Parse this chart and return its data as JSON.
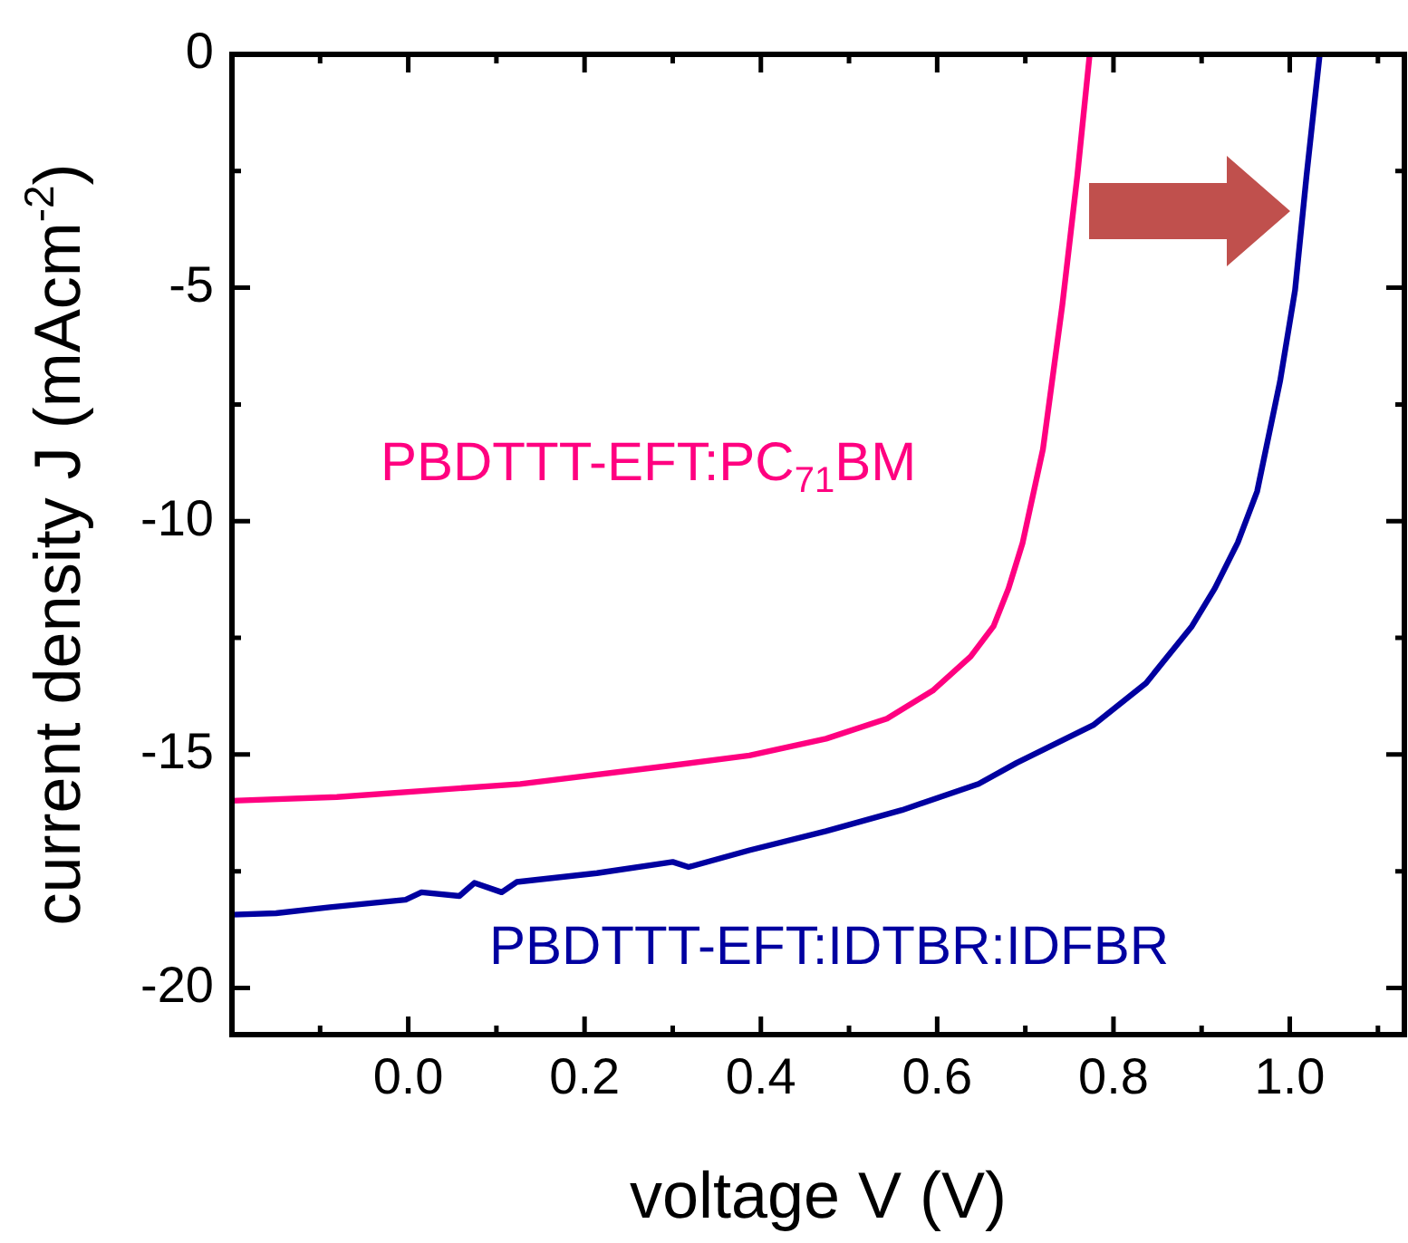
{
  "chart_data": {
    "type": "line",
    "xlabel": "voltage V (V)",
    "ylabel": "current density J (mAcm$^{-2}$)",
    "xlim": [
      -0.2,
      1.13
    ],
    "ylim": [
      -21,
      0
    ],
    "xticks": [
      {
        "value": -0.1,
        "label": null
      },
      {
        "value": 0,
        "label": "0.0"
      },
      {
        "value": 0.1,
        "label": null
      },
      {
        "value": 0.2,
        "label": "0.2"
      },
      {
        "value": 0.3,
        "label": null
      },
      {
        "value": 0.4,
        "label": "0.4"
      },
      {
        "value": 0.5,
        "label": null
      },
      {
        "value": 0.6,
        "label": "0.6"
      },
      {
        "value": 0.7,
        "label": null
      },
      {
        "value": 0.8,
        "label": "0.8"
      },
      {
        "value": 0.9,
        "label": null
      },
      {
        "value": 1.0,
        "label": "1.0"
      },
      {
        "value": 1.1,
        "label": null
      }
    ],
    "yticks": [
      -20,
      {
        "value": -17.5,
        "label": null
      },
      -15,
      {
        "value": -12.5,
        "label": null
      },
      -10,
      {
        "value": -7.5,
        "label": null
      },
      -5,
      {
        "value": -2.5,
        "label": null
      },
      0
    ],
    "grid": false,
    "legend": false,
    "marker": "none",
    "line_style": "solid",
    "series": [
      {
        "name": "PBDTTT-EFT:PC$_{71}$BM",
        "color": "#ff0080",
        "x": [
          -0.2,
          -0.081,
          0.127,
          0.3,
          0.387,
          0.474,
          0.543,
          0.595,
          0.638,
          0.664,
          0.681,
          0.697,
          0.72,
          0.742,
          0.759,
          0.773
        ],
        "values": [
          -15.99,
          -15.91,
          -15.63,
          -15.23,
          -15.02,
          -14.66,
          -14.23,
          -13.63,
          -12.9,
          -12.25,
          -11.44,
          -10.46,
          -8.46,
          -5.37,
          -2.6,
          0
        ]
      },
      {
        "name": "PBDTTT-EFT:IDTBR:IDFBR",
        "color": "#0000a0",
        "x": [
          -0.2,
          -0.15,
          -0.089,
          -0.003,
          0.015,
          0.058,
          0.075,
          0.106,
          0.123,
          0.214,
          0.3,
          0.318,
          0.387,
          0.474,
          0.56,
          0.647,
          0.69,
          0.777,
          0.837,
          0.889,
          0.915,
          0.941,
          0.963,
          0.989,
          1.006,
          1.019,
          1.034
        ],
        "values": [
          -18.43,
          -18.4,
          -18.27,
          -18.11,
          -17.95,
          -18.03,
          -17.75,
          -17.95,
          -17.73,
          -17.54,
          -17.3,
          -17.41,
          -17.05,
          -16.64,
          -16.19,
          -15.63,
          -15.18,
          -14.37,
          -13.47,
          -12.25,
          -11.44,
          -10.46,
          -9.36,
          -7.0,
          -5.05,
          -2.6,
          0
        ]
      }
    ]
  }
}
